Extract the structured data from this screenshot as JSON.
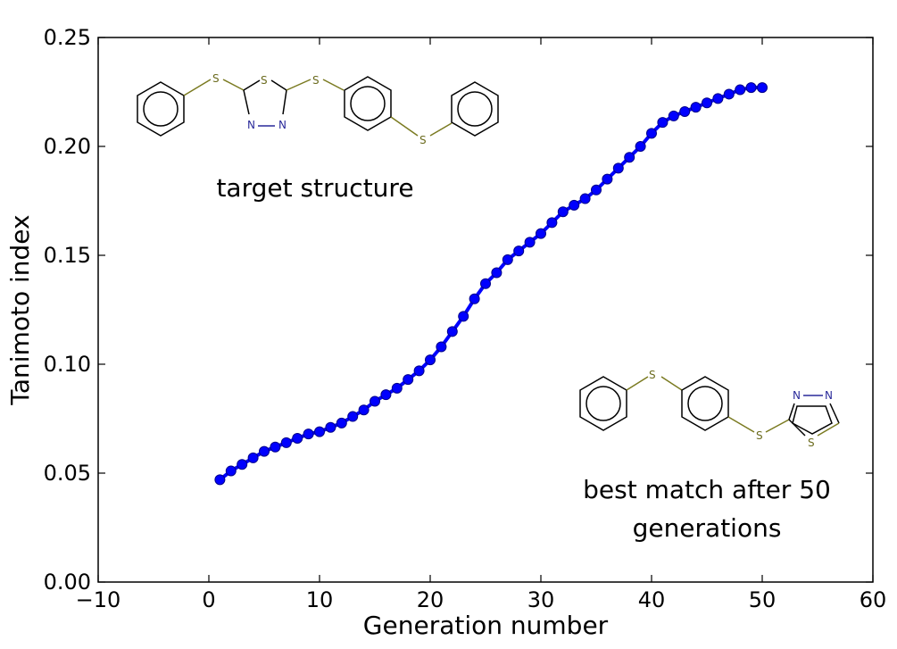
{
  "chart_data": {
    "type": "line",
    "title": "",
    "xlabel": "Generation number",
    "ylabel": "Tanimoto index",
    "xlim": [
      -10,
      60
    ],
    "ylim": [
      0.0,
      0.25
    ],
    "xticks": [
      "−10",
      "0",
      "10",
      "20",
      "30",
      "40",
      "50",
      "60"
    ],
    "xtick_values": [
      -10,
      0,
      10,
      20,
      30,
      40,
      50,
      60
    ],
    "yticks": [
      "0.00",
      "0.05",
      "0.10",
      "0.15",
      "0.20",
      "0.25"
    ],
    "ytick_values": [
      0.0,
      0.05,
      0.1,
      0.15,
      0.2,
      0.25
    ],
    "grid": false,
    "series_color": "#0000ff",
    "x": [
      1,
      2,
      3,
      4,
      5,
      6,
      7,
      8,
      9,
      10,
      11,
      12,
      13,
      14,
      15,
      16,
      17,
      18,
      19,
      20,
      21,
      22,
      23,
      24,
      25,
      26,
      27,
      28,
      29,
      30,
      31,
      32,
      33,
      34,
      35,
      36,
      37,
      38,
      39,
      40,
      41,
      42,
      43,
      44,
      45,
      46,
      47,
      48,
      49,
      50
    ],
    "y": [
      0.047,
      0.051,
      0.054,
      0.057,
      0.06,
      0.062,
      0.064,
      0.066,
      0.068,
      0.069,
      0.071,
      0.073,
      0.076,
      0.079,
      0.083,
      0.086,
      0.089,
      0.093,
      0.097,
      0.102,
      0.108,
      0.115,
      0.122,
      0.13,
      0.137,
      0.142,
      0.148,
      0.152,
      0.156,
      0.16,
      0.165,
      0.17,
      0.173,
      0.176,
      0.18,
      0.185,
      0.19,
      0.195,
      0.2,
      0.206,
      0.211,
      0.214,
      0.216,
      0.218,
      0.22,
      0.222,
      0.224,
      0.226,
      0.227,
      0.227
    ],
    "annotations": [
      {
        "text": "target structure"
      },
      {
        "text": "best match after 50"
      },
      {
        "text": "generations"
      }
    ],
    "molecule_atoms": {
      "target": [
        "S",
        "S",
        "N",
        "N",
        "S",
        "S"
      ],
      "best": [
        "S",
        "S",
        "N",
        "N",
        "S"
      ]
    }
  }
}
